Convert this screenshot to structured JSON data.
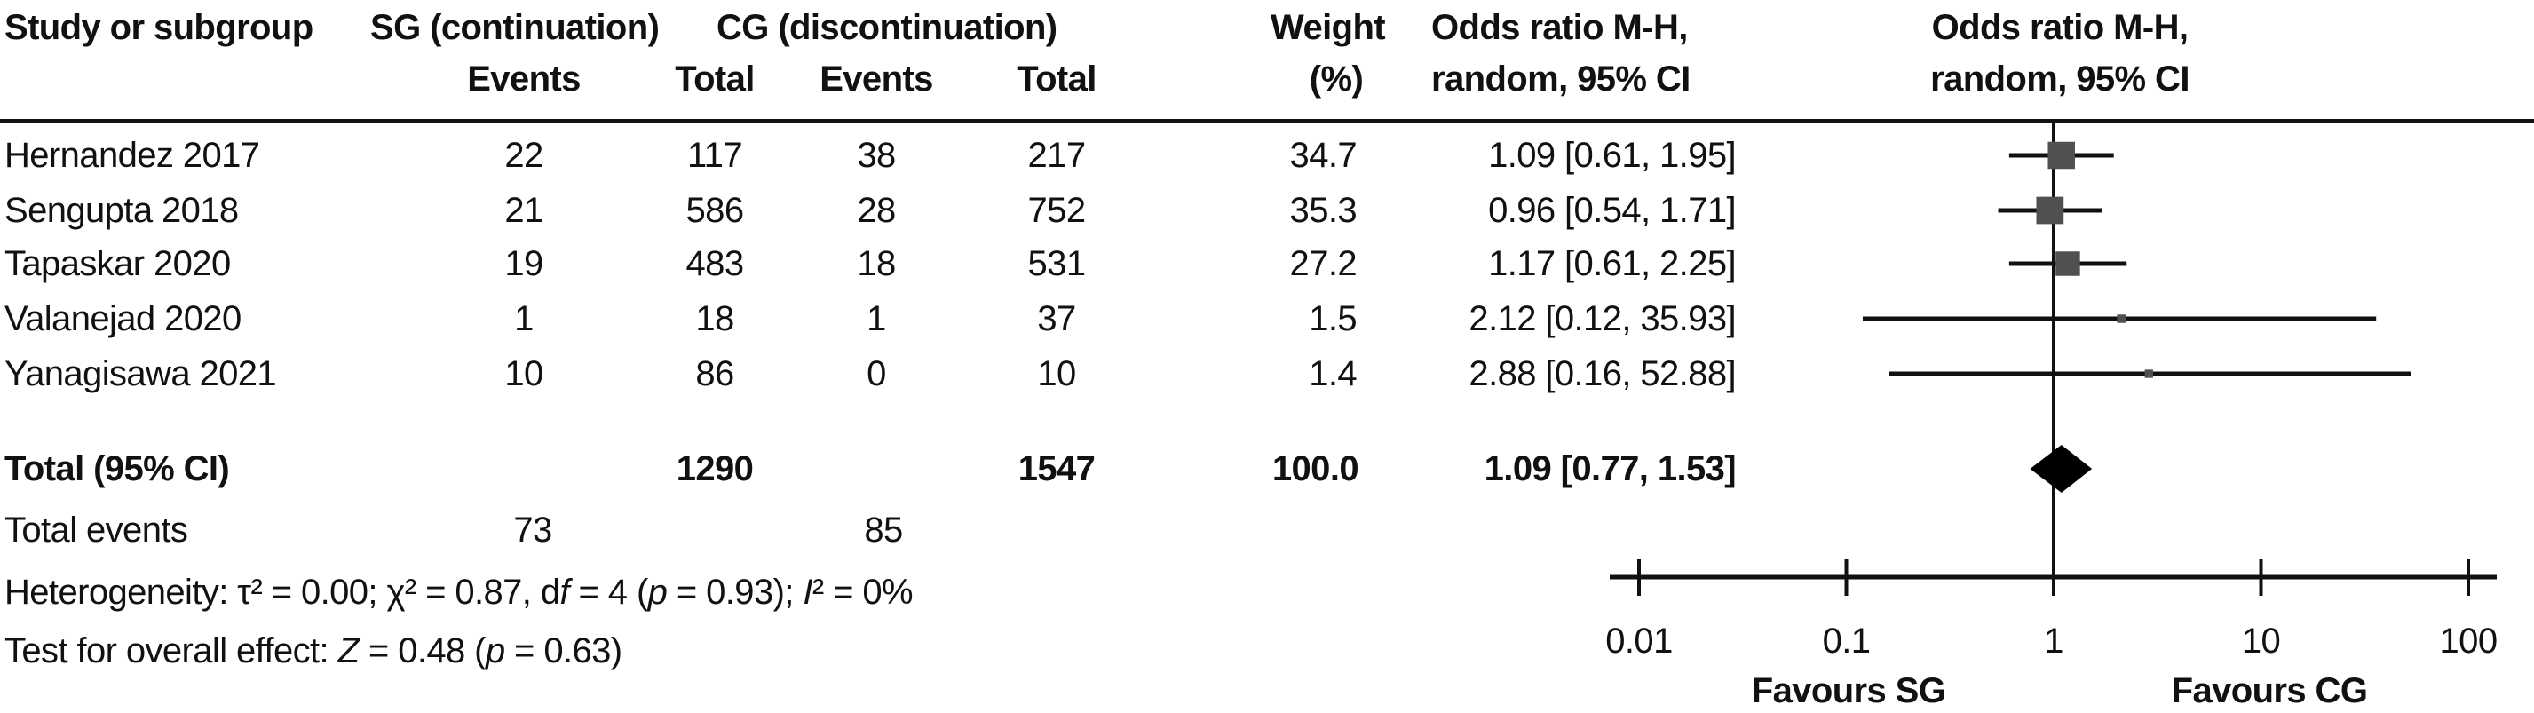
{
  "table": {
    "header": {
      "study_col": "Study or subgroup",
      "group_sg": "SG (continuation)",
      "group_cg": "CG (discontinuation)",
      "sg_events": "Events",
      "sg_total": "Total",
      "cg_events": "Events",
      "cg_total": "Total",
      "weight_line1": "Weight",
      "weight_line2": "(%)",
      "or_line1": "Odds ratio M-H,",
      "or_line2": "random, 95% CI",
      "plot_line1": "Odds ratio M-H,",
      "plot_line2": "random, 95% CI"
    },
    "rows": [
      {
        "study": "Hernandez 2017",
        "sg_events": "22",
        "sg_total": "117",
        "cg_events": "38",
        "cg_total": "217",
        "weight": "34.7",
        "or_ci": "1.09 [0.61, 1.95]"
      },
      {
        "study": "Sengupta 2018",
        "sg_events": "21",
        "sg_total": "586",
        "cg_events": "28",
        "cg_total": "752",
        "weight": "35.3",
        "or_ci": "0.96 [0.54, 1.71]"
      },
      {
        "study": "Tapaskar 2020",
        "sg_events": "19",
        "sg_total": "483",
        "cg_events": "18",
        "cg_total": "531",
        "weight": "27.2",
        "or_ci": "1.17 [0.61, 2.25]"
      },
      {
        "study": "Valanejad 2020",
        "sg_events": "1",
        "sg_total": "18",
        "cg_events": "1",
        "cg_total": "37",
        "weight": "1.5",
        "or_ci": "2.12 [0.12, 35.93]"
      },
      {
        "study": "Yanagisawa 2021",
        "sg_events": "10",
        "sg_total": "86",
        "cg_events": "0",
        "cg_total": "10",
        "weight": "1.4",
        "or_ci": "2.88 [0.16, 52.88]"
      }
    ],
    "total_row": {
      "label": "Total (95% CI)",
      "sg_total": "1290",
      "cg_total": "1547",
      "weight": "100.0",
      "or_ci": "1.09 [0.77, 1.53]"
    },
    "total_events": {
      "label": "Total events",
      "sg": "73",
      "cg": "85"
    }
  },
  "stats": {
    "heterogeneity_parts": [
      "Heterogeneity: τ² = 0.00; χ² = 0.87, d",
      "f",
      " = 4 (",
      "p",
      " = 0.93); ",
      "I",
      "² = 0%"
    ],
    "overall_effect_parts": [
      "Test for overall effect: ",
      "Z",
      " = 0.48 (",
      "p",
      " = 0.63)"
    ]
  },
  "chart_data": {
    "type": "forest",
    "x_scale": "log10",
    "xlim": [
      0.01,
      100
    ],
    "axis_ticks": [
      0.01,
      0.1,
      1,
      10,
      100
    ],
    "axis_tick_labels": [
      "0.01",
      "0.1",
      "1",
      "10",
      "100"
    ],
    "effect_measure": "Odds ratio M-H, random, 95% CI",
    "studies": [
      {
        "name": "Hernandez 2017",
        "or": 1.09,
        "ci_low": 0.61,
        "ci_high": 1.95,
        "weight_pct": 34.7
      },
      {
        "name": "Sengupta 2018",
        "or": 0.96,
        "ci_low": 0.54,
        "ci_high": 1.71,
        "weight_pct": 35.3
      },
      {
        "name": "Tapaskar 2020",
        "or": 1.17,
        "ci_low": 0.61,
        "ci_high": 2.25,
        "weight_pct": 27.2
      },
      {
        "name": "Valanejad 2020",
        "or": 2.12,
        "ci_low": 0.12,
        "ci_high": 35.93,
        "weight_pct": 1.5
      },
      {
        "name": "Yanagisawa 2021",
        "or": 2.88,
        "ci_low": 0.16,
        "ci_high": 52.88,
        "weight_pct": 1.4
      }
    ],
    "pooled": {
      "label": "Total (95% CI)",
      "or": 1.09,
      "ci_low": 0.77,
      "ci_high": 1.53,
      "weight_pct": 100.0
    },
    "favours_left": "Favours SG",
    "favours_right": "Favours CG",
    "marker_color": "#505050",
    "diamond_color": "#000000",
    "line_color": "#111111"
  }
}
